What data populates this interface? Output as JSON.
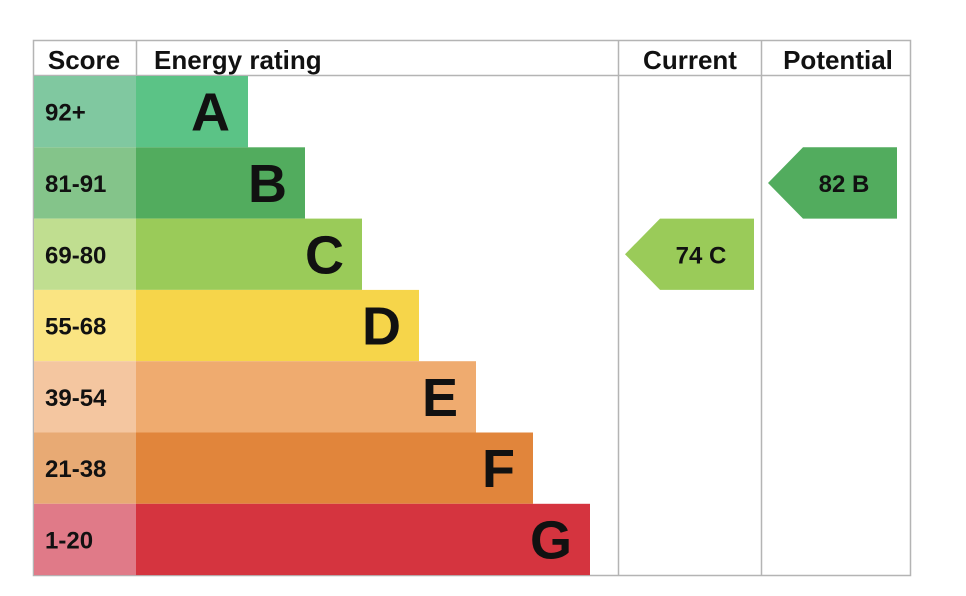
{
  "headers": {
    "score": "Score",
    "rating": "Energy rating",
    "current": "Current",
    "potential": "Potential"
  },
  "chart_data": {
    "type": "bar",
    "title": "",
    "bands": [
      {
        "letter": "A",
        "score_range": "92+",
        "min": 92,
        "max": 100,
        "bar_color": "#5bc386",
        "score_color": "#80c8a0"
      },
      {
        "letter": "B",
        "score_range": "81-91",
        "min": 81,
        "max": 91,
        "bar_color": "#52ac5e",
        "score_color": "#84c48a"
      },
      {
        "letter": "C",
        "score_range": "69-80",
        "min": 69,
        "max": 80,
        "bar_color": "#9acb59",
        "score_color": "#c0de90"
      },
      {
        "letter": "D",
        "score_range": "55-68",
        "min": 55,
        "max": 68,
        "bar_color": "#f6d54a",
        "score_color": "#fae482"
      },
      {
        "letter": "E",
        "score_range": "39-54",
        "min": 39,
        "max": 54,
        "bar_color": "#efab6f",
        "score_color": "#f4c6a0"
      },
      {
        "letter": "F",
        "score_range": "21-38",
        "min": 21,
        "max": 38,
        "bar_color": "#e1853b",
        "score_color": "#e8aa74"
      },
      {
        "letter": "G",
        "score_range": "1-20",
        "min": 1,
        "max": 20,
        "bar_color": "#d5343f",
        "score_color": "#e07a88"
      }
    ],
    "current": {
      "score": 74,
      "band": "C",
      "label": "74  C",
      "color": "#9acb59"
    },
    "potential": {
      "score": 82,
      "band": "B",
      "label": "82  B",
      "color": "#52ac5e"
    }
  }
}
